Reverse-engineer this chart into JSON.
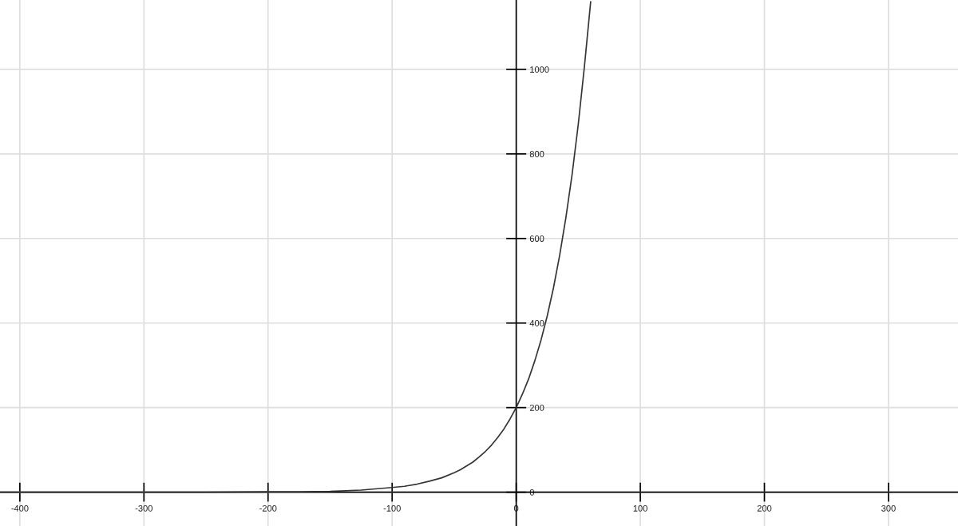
{
  "chart_data": {
    "type": "line",
    "x": [
      -416,
      -300,
      -250,
      -200,
      -175,
      -150,
      -125,
      -100,
      -90,
      -80,
      -70,
      -60,
      -50,
      -45,
      -40,
      -35,
      -30,
      -25,
      -20,
      -15,
      -10,
      -5,
      0,
      5,
      10,
      15,
      20,
      25,
      30,
      35,
      40,
      45,
      50,
      55,
      60
    ],
    "values": [
      0,
      0,
      0,
      1,
      1,
      2,
      5,
      11,
      14,
      19,
      26,
      34,
      46,
      53,
      62,
      71,
      83,
      96,
      111,
      129,
      149,
      173,
      200,
      232,
      268,
      311,
      360,
      417,
      483,
      560,
      649,
      751,
      870,
      1008,
      1160
    ],
    "color": "#333333",
    "line_style": "solid",
    "xlim": [
      -416,
      356
    ],
    "ylim": [
      -80,
      1164
    ],
    "xticks": [
      -400,
      -300,
      -200,
      -100,
      0,
      100,
      200,
      300
    ],
    "yticks": [
      0,
      200,
      400,
      600,
      800,
      1000
    ],
    "grid": true
  }
}
